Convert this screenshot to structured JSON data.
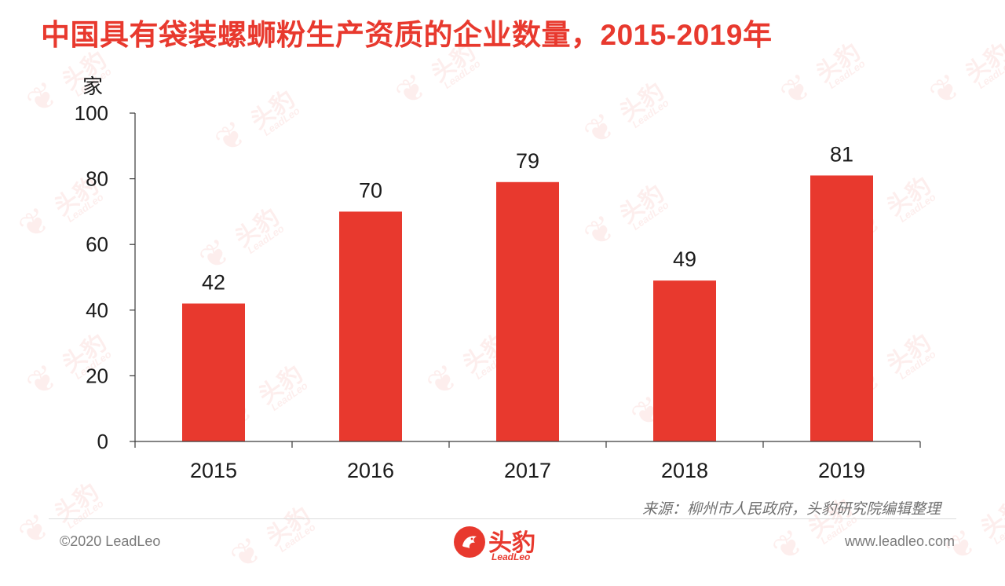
{
  "page": {
    "title": "中国具有袋装螺蛳粉生产资质的企业数量，2015-2019年",
    "source": "来源：柳州市人民政府，头豹研究院编辑整理",
    "copyright": "©2020 LeadLeo",
    "website": "www.leadleo.com",
    "logo_cn": "头豹",
    "logo_en": "LeadLeo",
    "watermark_cn": "头豹",
    "watermark_en": "LeadLeo"
  },
  "colors": {
    "accent": "#e8392e",
    "bar": "#e8392e",
    "axis": "#3a3a3a",
    "text": "#1a1a1a",
    "muted": "#707070"
  },
  "chart_data": {
    "type": "bar",
    "title": "中国具有袋装螺蛳粉生产资质的企业数量，2015-2019年",
    "ylabel": "家",
    "xlabel": "",
    "categories": [
      "2015",
      "2016",
      "2017",
      "2018",
      "2019"
    ],
    "values": [
      42,
      70,
      79,
      49,
      81
    ],
    "ylim": [
      0,
      100
    ],
    "yticks": [
      0,
      20,
      40,
      60,
      80,
      100
    ],
    "data_labels": true,
    "grid": false,
    "legend": "none"
  }
}
